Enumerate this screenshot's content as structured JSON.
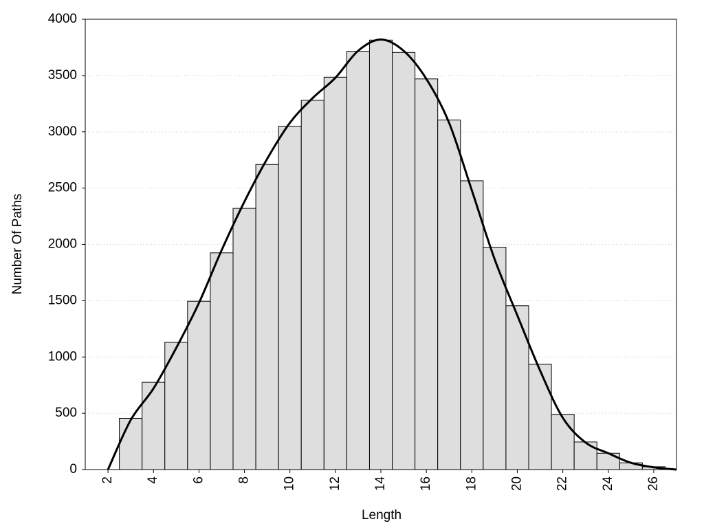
{
  "chart_data": {
    "type": "histogram",
    "xlabel": "Length",
    "ylabel": "Number Of Paths",
    "bins": [
      2.5,
      3.5,
      4.5,
      5.5,
      6.5,
      7.5,
      8.5,
      9.5,
      10.5,
      11.5,
      12.5,
      13.5,
      14.5,
      15.5,
      16.5,
      17.5,
      18.5,
      19.5,
      20.5,
      21.5,
      22.5,
      23.5,
      24.5,
      25.5,
      26.5
    ],
    "values": [
      455,
      775,
      1130,
      1495,
      1925,
      2320,
      2710,
      3050,
      3280,
      3485,
      3715,
      3815,
      3705,
      3470,
      3105,
      2565,
      1975,
      1455,
      935,
      490,
      245,
      145,
      60,
      25
    ],
    "color": "#dedede",
    "line": {
      "x": [
        2,
        3,
        4,
        5,
        6,
        7,
        8,
        9,
        10,
        11,
        12,
        13,
        14,
        15,
        16,
        17,
        18,
        19,
        20,
        21,
        22,
        23,
        24,
        25,
        26,
        27
      ],
      "values": [
        0,
        440,
        720,
        1080,
        1480,
        1950,
        2380,
        2760,
        3080,
        3300,
        3480,
        3720,
        3820,
        3720,
        3470,
        3080,
        2480,
        1870,
        1370,
        880,
        460,
        240,
        145,
        60,
        20,
        0
      ],
      "color": "#000000"
    },
    "xlim": [
      1,
      27
    ],
    "ylim": [
      0,
      4000
    ],
    "xticks": [
      2,
      4,
      6,
      8,
      10,
      12,
      14,
      16,
      18,
      20,
      22,
      24,
      26
    ],
    "yticks": [
      0,
      500,
      1000,
      1500,
      2000,
      2500,
      3000,
      3500,
      4000
    ],
    "grid": true
  }
}
